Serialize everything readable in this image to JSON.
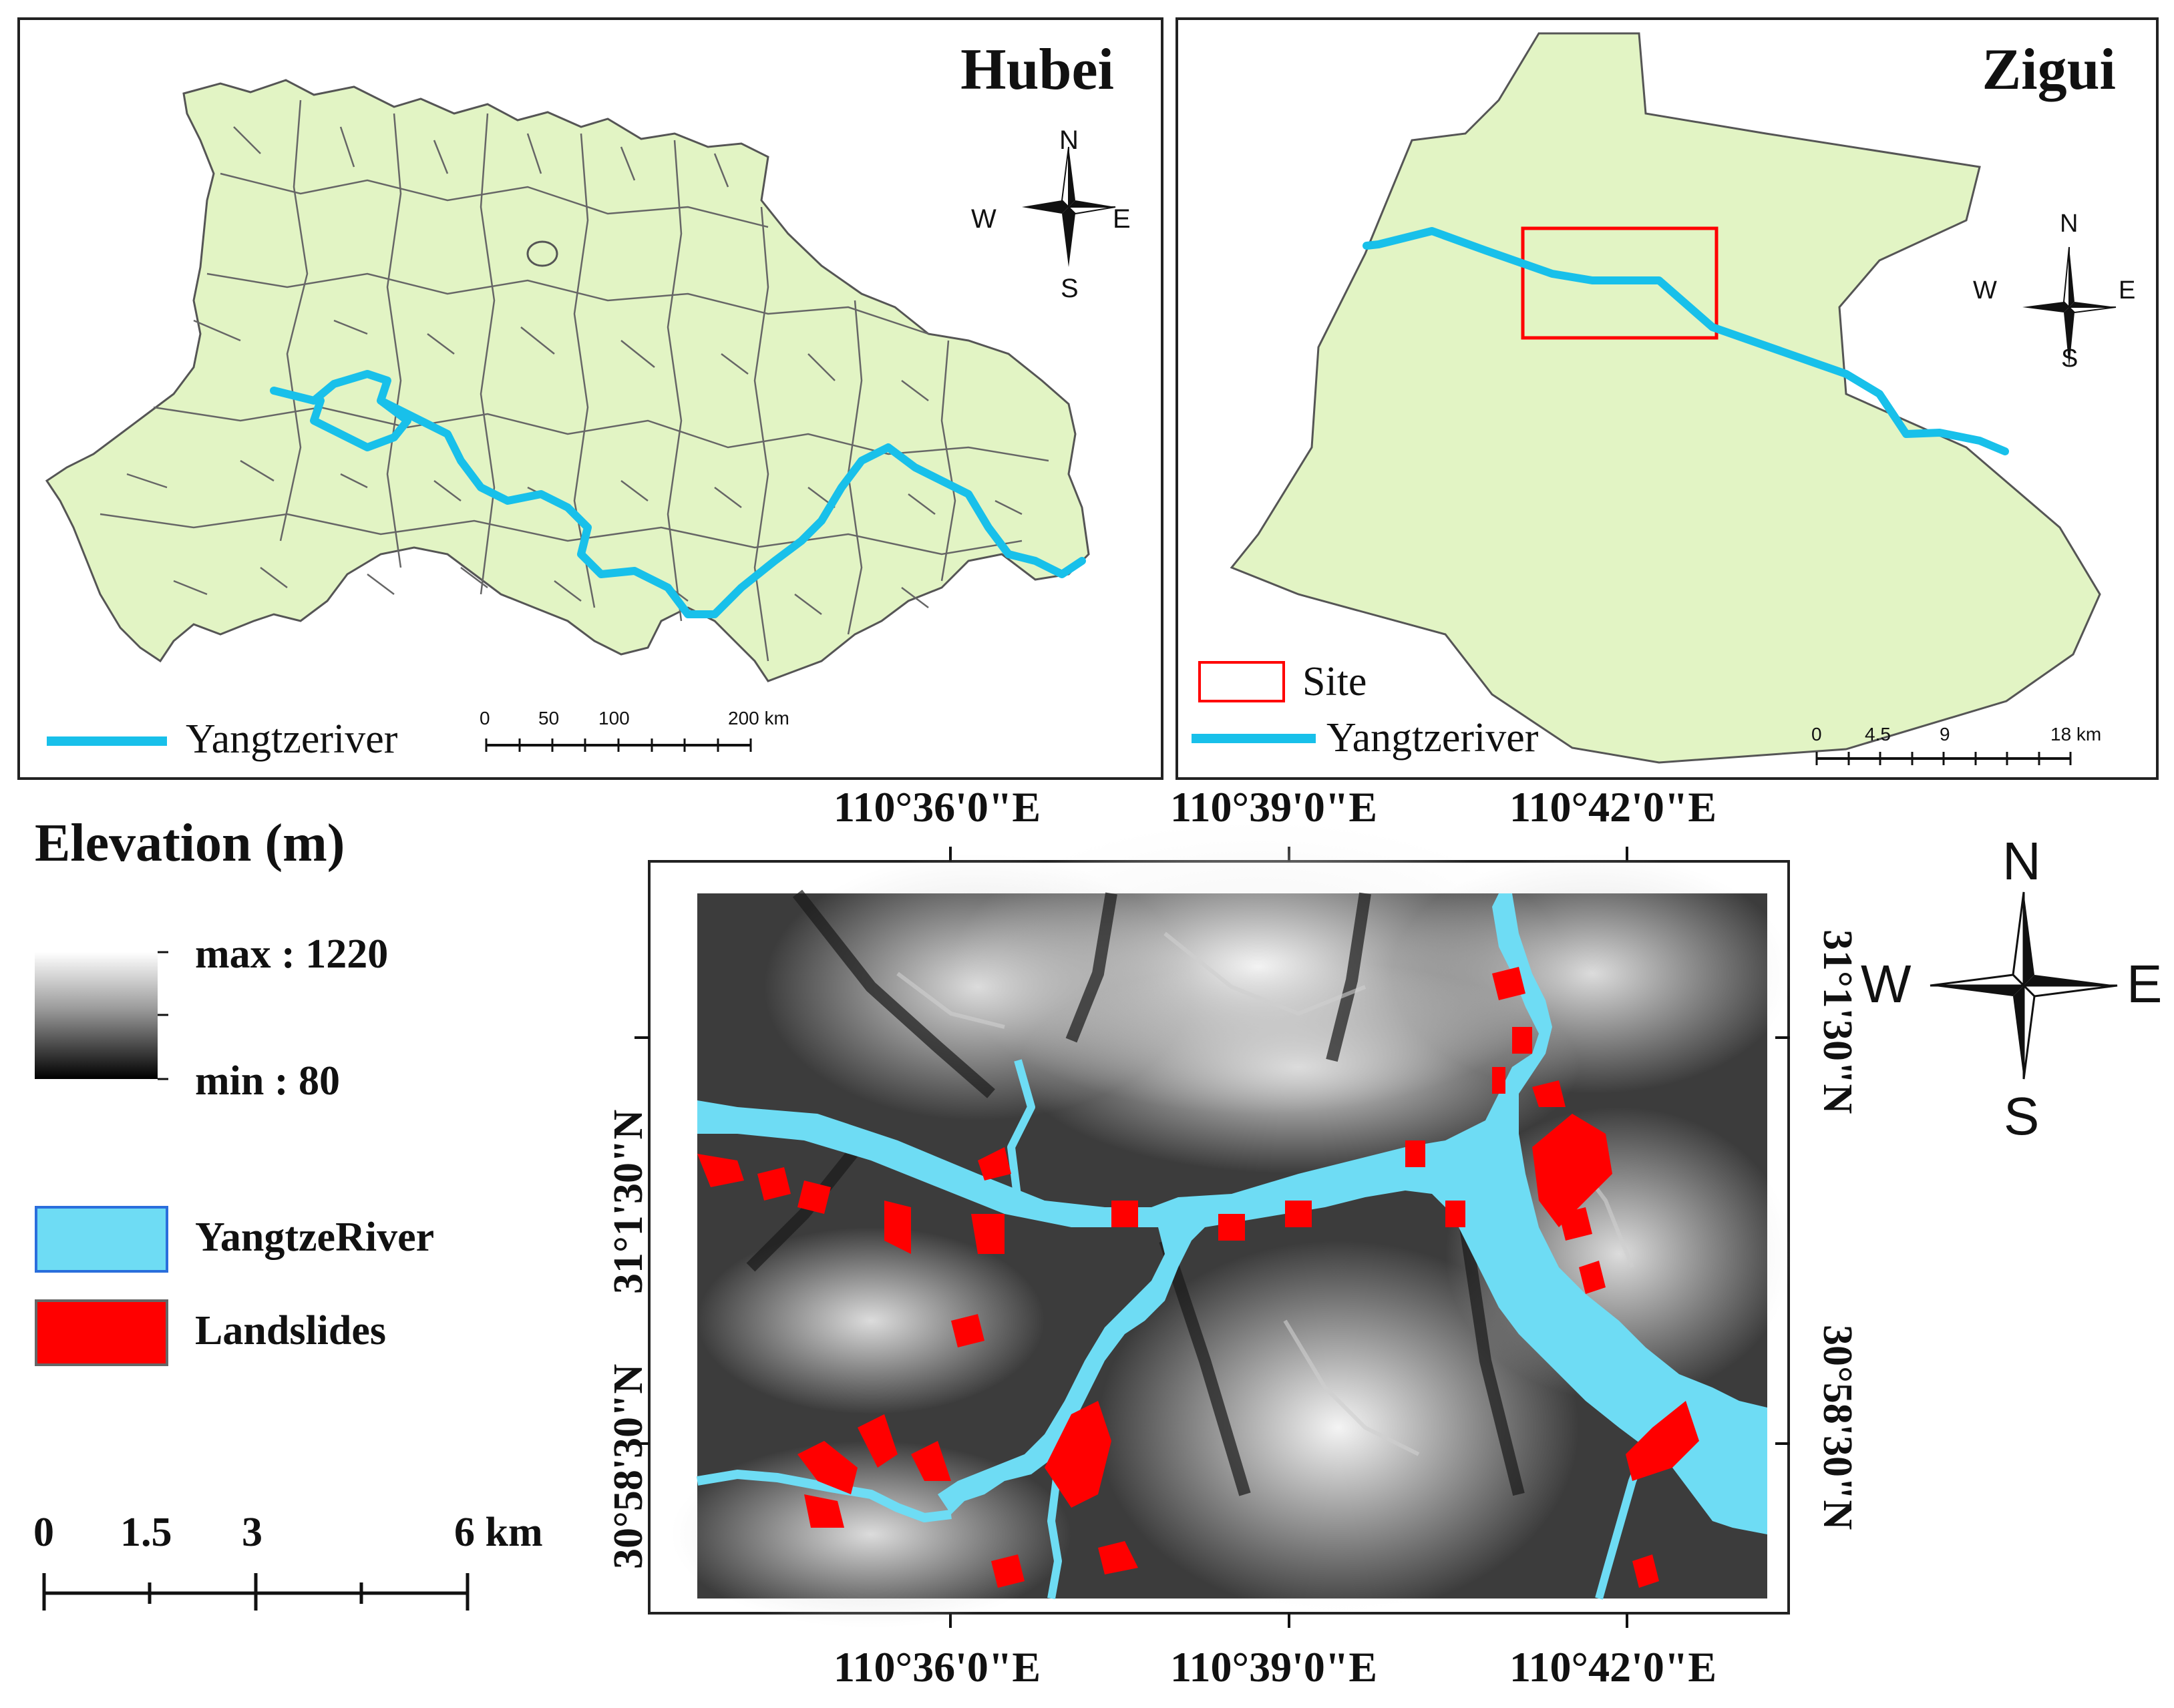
{
  "hubei_map": {
    "title": "Hubei",
    "legend_river": "Yangtzeriver",
    "scale_labels": [
      "0",
      "50",
      "100",
      "200 km"
    ],
    "compass": {
      "n": "N",
      "s": "S",
      "e": "E",
      "w": "W"
    }
  },
  "zigui_map": {
    "title": "Zigui",
    "legend_site": "Site",
    "legend_river": "Yangtzeriver",
    "scale_labels": [
      "0",
      "4.5",
      "9",
      "18 km"
    ],
    "compass": {
      "n": "N",
      "s": "S",
      "e": "E",
      "w": "W"
    }
  },
  "study_area": {
    "lon_labels_top": [
      "110°36'0\"E",
      "110°39'0\"E",
      "110°42'0\"E"
    ],
    "lon_labels_bottom": [
      "110°36'0\"E",
      "110°39'0\"E",
      "110°42'0\"E"
    ],
    "lat_labels_left": [
      "31°1'30\"N",
      "30°58'30\"N"
    ],
    "lat_labels_right": [
      "31°1'30\"N",
      "30°58'30\"N"
    ],
    "compass": {
      "n": "N",
      "s": "S",
      "e": "E",
      "w": "W"
    }
  },
  "legend": {
    "elevation_title": "Elevation (m)",
    "max_label": "max : 1220",
    "min_label": "min : 80",
    "river_label": "YangtzeRiver",
    "landslide_label": "Landslides",
    "scale_labels": [
      "0",
      "1.5",
      "3",
      "6 km"
    ]
  },
  "colors": {
    "land": "#e2f4c4",
    "river": "#18c0ea",
    "study_river": "#6edcf4",
    "landslide": "#ff0000",
    "site_box": "#ff0000",
    "boundary": "#555555"
  }
}
